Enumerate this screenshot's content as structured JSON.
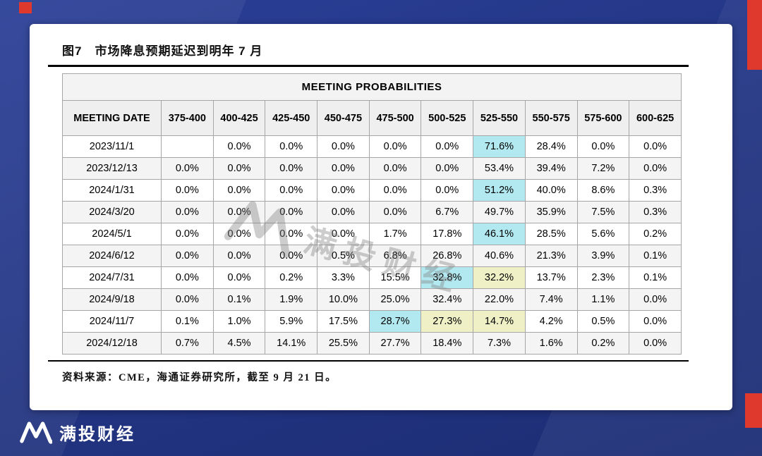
{
  "figure": {
    "title": "图7　市场降息预期延迟到明年 7 月",
    "source_note": "资料来源：CME，海通证券研究所，截至 9 月 21 日。"
  },
  "brand": {
    "name": "满投财经",
    "watermark_text": "满投财经"
  },
  "theme": {
    "background_navy": "#24368a",
    "accent_red": "#df392e",
    "card_bg": "#ffffff"
  },
  "chart_data": {
    "type": "table",
    "title": "MEETING PROBABILITIES",
    "columns": [
      "MEETING DATE",
      "375-400",
      "400-425",
      "425-450",
      "450-475",
      "475-500",
      "500-525",
      "525-550",
      "550-575",
      "575-600",
      "600-625"
    ],
    "rows": [
      {
        "date": "2023/11/1",
        "values": [
          "",
          "0.0%",
          "0.0%",
          "0.0%",
          "0.0%",
          "0.0%",
          "71.6%",
          "28.4%",
          "0.0%",
          "0.0%"
        ],
        "highlight": [
          "",
          "",
          "",
          "",
          "",
          "",
          "cyan",
          "",
          "",
          ""
        ]
      },
      {
        "date": "2023/12/13",
        "values": [
          "0.0%",
          "0.0%",
          "0.0%",
          "0.0%",
          "0.0%",
          "0.0%",
          "53.4%",
          "39.4%",
          "7.2%",
          "0.0%"
        ],
        "highlight": [
          "",
          "",
          "",
          "",
          "",
          "",
          "cyan",
          "",
          "",
          ""
        ]
      },
      {
        "date": "2024/1/31",
        "values": [
          "0.0%",
          "0.0%",
          "0.0%",
          "0.0%",
          "0.0%",
          "0.0%",
          "51.2%",
          "40.0%",
          "8.6%",
          "0.3%"
        ],
        "highlight": [
          "",
          "",
          "",
          "",
          "",
          "",
          "cyan",
          "",
          "",
          ""
        ]
      },
      {
        "date": "2024/3/20",
        "values": [
          "0.0%",
          "0.0%",
          "0.0%",
          "0.0%",
          "0.0%",
          "6.7%",
          "49.7%",
          "35.9%",
          "7.5%",
          "0.3%"
        ],
        "highlight": [
          "",
          "",
          "",
          "",
          "",
          "",
          "cyan",
          "",
          "",
          ""
        ]
      },
      {
        "date": "2024/5/1",
        "values": [
          "0.0%",
          "0.0%",
          "0.0%",
          "0.0%",
          "1.7%",
          "17.8%",
          "46.1%",
          "28.5%",
          "5.6%",
          "0.2%"
        ],
        "highlight": [
          "",
          "",
          "",
          "",
          "",
          "",
          "cyan",
          "",
          "",
          ""
        ]
      },
      {
        "date": "2024/6/12",
        "values": [
          "0.0%",
          "0.0%",
          "0.0%",
          "0.5%",
          "6.8%",
          "26.8%",
          "40.6%",
          "21.3%",
          "3.9%",
          "0.1%"
        ],
        "highlight": [
          "",
          "",
          "",
          "",
          "",
          "",
          "cyan",
          "",
          "",
          ""
        ]
      },
      {
        "date": "2024/7/31",
        "values": [
          "0.0%",
          "0.0%",
          "0.2%",
          "3.3%",
          "15.5%",
          "32.8%",
          "32.2%",
          "13.7%",
          "2.3%",
          "0.1%"
        ],
        "highlight": [
          "",
          "",
          "",
          "",
          "",
          "cyan",
          "yellow",
          "",
          "",
          ""
        ]
      },
      {
        "date": "2024/9/18",
        "values": [
          "0.0%",
          "0.1%",
          "1.9%",
          "10.0%",
          "25.0%",
          "32.4%",
          "22.0%",
          "7.4%",
          "1.1%",
          "0.0%"
        ],
        "highlight": [
          "",
          "",
          "",
          "",
          "",
          "cyan",
          "yellow",
          "",
          "",
          ""
        ]
      },
      {
        "date": "2024/11/7",
        "values": [
          "0.1%",
          "1.0%",
          "5.9%",
          "17.5%",
          "28.7%",
          "27.3%",
          "14.7%",
          "4.2%",
          "0.5%",
          "0.0%"
        ],
        "highlight": [
          "",
          "",
          "",
          "",
          "cyan",
          "yellow",
          "yellow",
          "",
          "",
          ""
        ]
      },
      {
        "date": "2024/12/18",
        "values": [
          "0.7%",
          "4.5%",
          "14.1%",
          "25.5%",
          "27.7%",
          "18.4%",
          "7.3%",
          "1.6%",
          "0.2%",
          "0.0%"
        ],
        "highlight": [
          "",
          "",
          "",
          "",
          "cyan",
          "yellow",
          "yellow",
          "",
          "",
          ""
        ]
      }
    ],
    "highlight_colors": {
      "cyan": "#b2e9f0",
      "yellow": "#eff0c6"
    },
    "layout": {
      "grid": true,
      "header_bg": "#efefef",
      "banner_bg": "#f3f3f3",
      "row_alt_bg": "#f4f4f4"
    }
  }
}
